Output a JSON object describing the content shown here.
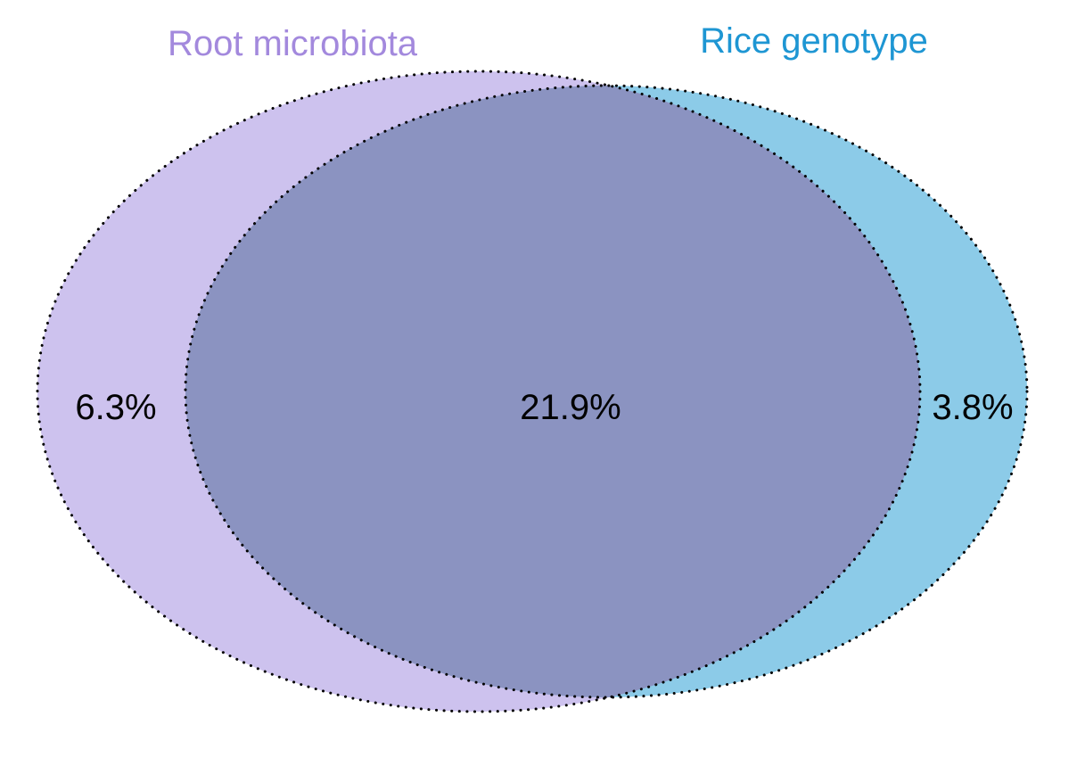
{
  "sets": [
    {
      "name": "Root microbiota",
      "color": "#a389dd",
      "fill": "#cdc2ee"
    },
    {
      "name": "Rice genotype",
      "color": "#1e96d3",
      "fill": "#8ccbe8"
    }
  ],
  "regions": {
    "root_only": "6.3%",
    "overlap": "21.9%",
    "genotype_only": "3.8%"
  },
  "overlap_fill": "#8b93c1",
  "outline": {
    "color": "#000000",
    "style": "dotted"
  }
}
